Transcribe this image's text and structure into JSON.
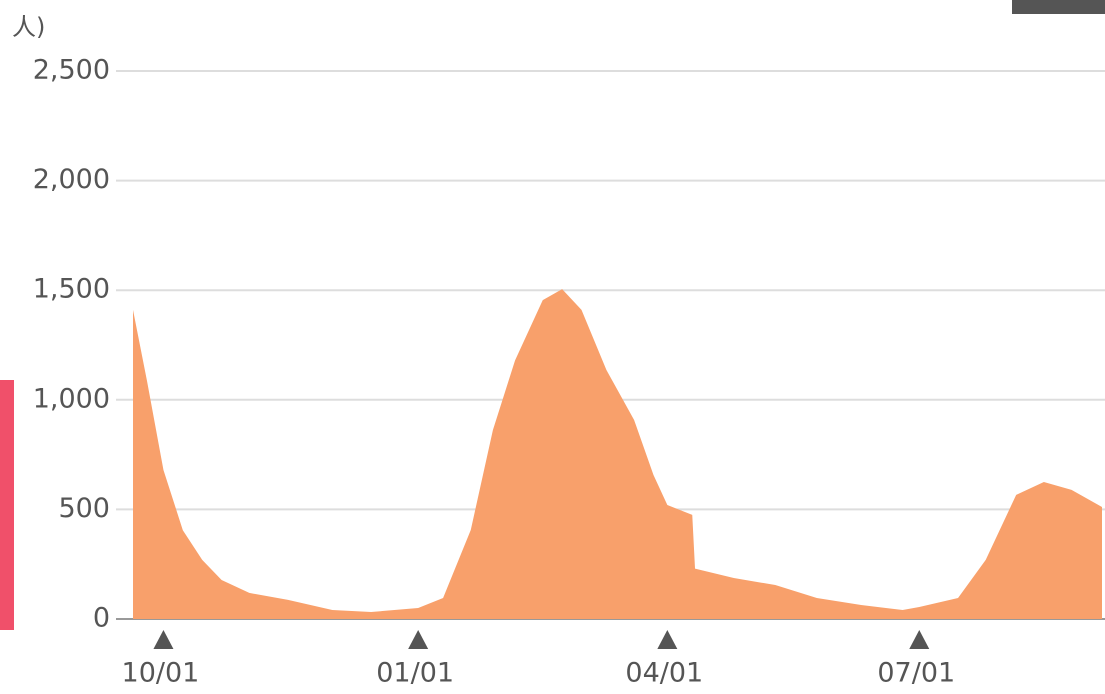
{
  "chart_data": {
    "type": "area",
    "y_label": "人)",
    "x": [
      "09/20",
      "09/25",
      "10/01",
      "10/08",
      "10/15",
      "10/22",
      "11/01",
      "11/15",
      "12/01",
      "12/15",
      "01/01",
      "01/10",
      "01/20",
      "01/28",
      "02/05",
      "02/15",
      "02/22",
      "03/01",
      "03/10",
      "03/20",
      "03/27",
      "04/01",
      "04/10",
      "04/11",
      "04/25",
      "05/10",
      "05/25",
      "06/10",
      "06/25",
      "07/01",
      "07/15",
      "07/25",
      "08/05",
      "08/15",
      "08/25",
      "09/05"
    ],
    "series": [
      {
        "color": "#f8a06b",
        "values": [
          1410,
          1090,
          680,
          405,
          270,
          178,
          119,
          87,
          41,
          32,
          50,
          96,
          406,
          862,
          1180,
          1455,
          1505,
          1410,
          1136,
          908,
          657,
          520,
          475,
          230,
          187,
          155,
          96,
          64,
          41,
          55,
          96,
          270,
          566,
          625,
          589,
          511
        ]
      }
    ],
    "xticks": [
      "10/01",
      "01/01",
      "04/01",
      "07/01"
    ],
    "ylim": [
      0,
      2500
    ],
    "yticks": [
      0,
      500,
      {
        "value": 1000,
        "label": "1,000"
      },
      {
        "value": 1500,
        "label": "1,500"
      },
      {
        "value": 2000,
        "label": "2,000"
      },
      {
        "value": 2500,
        "label": "2,500"
      }
    ],
    "grid": true
  }
}
